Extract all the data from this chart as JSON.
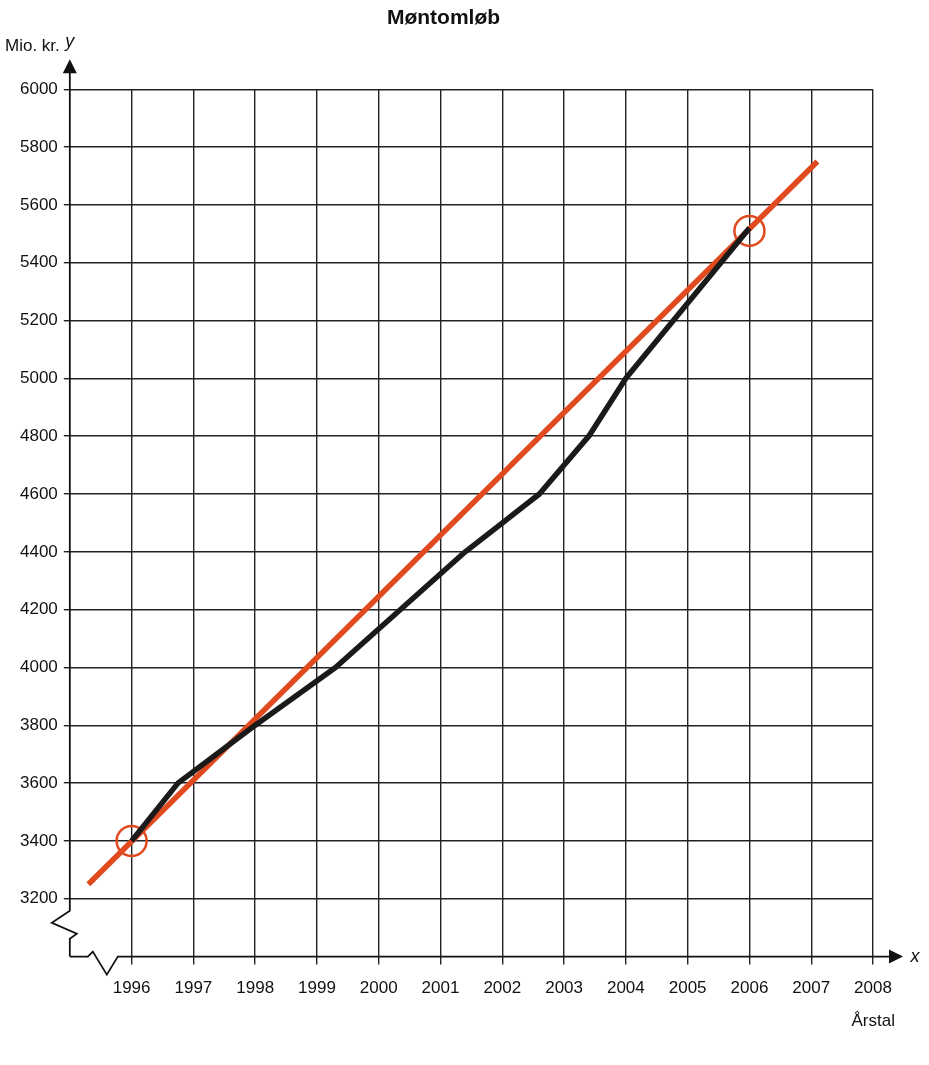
{
  "chart_data": {
    "type": "line",
    "title": "Møntomløb",
    "xlabel": "Årstal",
    "ylabel": "Mio. kr.",
    "annotations": [
      "y",
      "x"
    ],
    "xlim": [
      1995,
      2008
    ],
    "xticks": [
      1996,
      1997,
      1998,
      1999,
      2000,
      2001,
      2002,
      2003,
      2004,
      2005,
      2006,
      2007,
      2008
    ],
    "ylim": [
      3000,
      6000
    ],
    "yticks": [
      3200,
      3400,
      3600,
      3800,
      4000,
      4200,
      4400,
      4600,
      4800,
      5000,
      5200,
      5400,
      5600,
      5800,
      6000
    ],
    "grid": true,
    "legend": false,
    "series": [
      {
        "type": "line",
        "color": "#1a1a1a",
        "marker": "none",
        "x": [
          1996,
          1996.75,
          1998,
          1999.3,
          2001.4,
          2002.6,
          2003.4,
          2004,
          2006
        ],
        "values": [
          3400,
          3600,
          3800,
          4000,
          4400,
          4600,
          4800,
          5000,
          5520
        ]
      },
      {
        "type": "line",
        "color": "#e04a1e",
        "marker": "none",
        "x": [
          1995.3,
          2007.1
        ],
        "values": [
          3250,
          5750
        ]
      },
      {
        "type": "scatter",
        "color": "#e04a1e",
        "marker": "circle",
        "x": [
          1996,
          2006
        ],
        "values": [
          3400,
          5510
        ]
      }
    ]
  }
}
